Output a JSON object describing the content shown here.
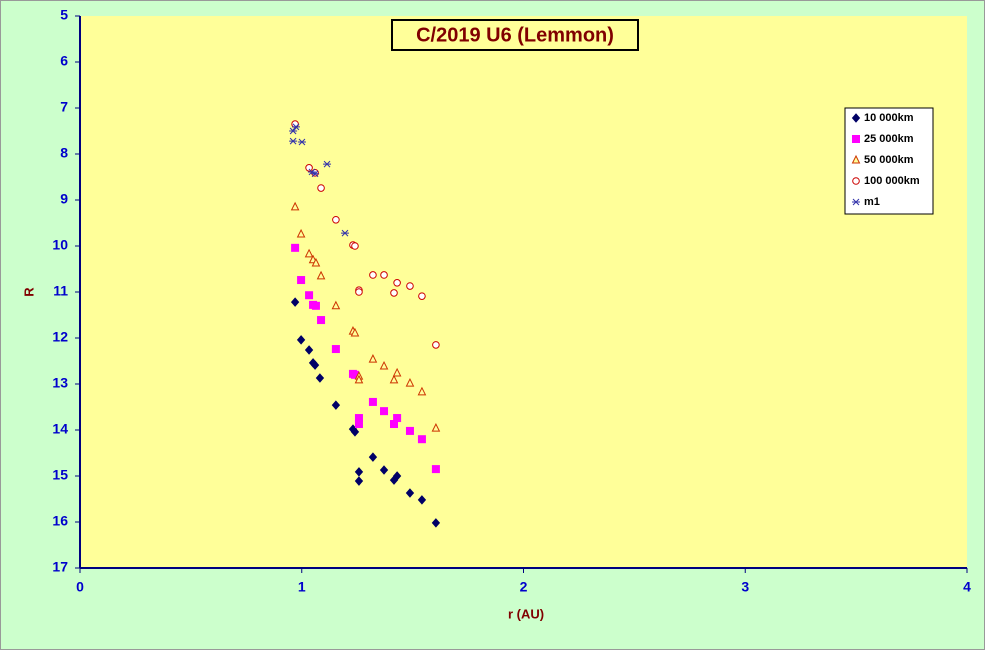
{
  "chart_data": {
    "type": "scatter",
    "title": "C/2019 U6 (Lemmon)",
    "x_label": "r (AU)",
    "y_label": "R",
    "xlim": [
      0,
      4
    ],
    "xticks": [
      0,
      1,
      2,
      3,
      4
    ],
    "ylim": [
      5,
      17
    ],
    "yticks": [
      5,
      6,
      7,
      8,
      9,
      10,
      11,
      12,
      13,
      14,
      15,
      16,
      17
    ],
    "y_reversed": true,
    "legend": "top-right",
    "series": [
      {
        "name": "10 000km",
        "color": "#000066",
        "marker": "diamond",
        "filled": true,
        "x": [
          0.97,
          0.997,
          1.033,
          1.051,
          1.06,
          1.082,
          1.154,
          1.231,
          1.24,
          1.258,
          1.258,
          1.321,
          1.371,
          1.416,
          1.43,
          1.488,
          1.542,
          1.605
        ],
        "values": [
          11.22,
          12.04,
          12.26,
          12.54,
          12.59,
          12.87,
          13.46,
          13.98,
          14.04,
          14.91,
          15.11,
          14.59,
          14.87,
          15.09,
          15.0,
          15.37,
          15.52,
          16.02
        ]
      },
      {
        "name": "25 000km",
        "color": "#ff00ff",
        "marker": "square",
        "filled": true,
        "x": [
          0.97,
          0.997,
          1.033,
          1.051,
          1.064,
          1.087,
          1.154,
          1.231,
          1.24,
          1.258,
          1.258,
          1.321,
          1.371,
          1.416,
          1.43,
          1.488,
          1.542,
          1.605
        ],
        "values": [
          10.04,
          10.74,
          11.07,
          11.28,
          11.3,
          11.61,
          12.24,
          12.78,
          12.8,
          13.74,
          13.87,
          13.39,
          13.59,
          13.87,
          13.74,
          14.02,
          14.2,
          14.85
        ]
      },
      {
        "name": "50 000km",
        "color": "#cc3300",
        "marker": "triangle",
        "filled": false,
        "x": [
          0.97,
          0.997,
          1.033,
          1.051,
          1.064,
          1.087,
          1.154,
          1.231,
          1.24,
          1.258,
          1.258,
          1.321,
          1.371,
          1.416,
          1.43,
          1.488,
          1.542,
          1.605
        ],
        "values": [
          9.15,
          9.74,
          10.17,
          10.3,
          10.37,
          10.65,
          11.3,
          11.85,
          11.89,
          12.83,
          12.91,
          12.46,
          12.61,
          12.91,
          12.76,
          12.98,
          13.17,
          13.96
        ]
      },
      {
        "name": "100 000km",
        "color": "#cc0000",
        "marker": "circle",
        "filled": false,
        "x": [
          0.97,
          1.033,
          1.06,
          1.087,
          1.154,
          1.231,
          1.24,
          1.258,
          1.258,
          1.321,
          1.371,
          1.416,
          1.43,
          1.488,
          1.542,
          1.605
        ],
        "values": [
          7.35,
          8.3,
          8.41,
          8.74,
          9.43,
          9.98,
          10.0,
          10.96,
          11.0,
          10.63,
          10.63,
          11.02,
          10.8,
          10.87,
          11.09,
          12.15
        ]
      },
      {
        "name": "m1",
        "color": "#3333aa",
        "marker": "star",
        "filled": false,
        "x": [
          0.961,
          0.974,
          0.961,
          1.001,
          1.046,
          1.06,
          1.114,
          1.195
        ],
        "values": [
          7.5,
          7.41,
          7.72,
          7.74,
          8.39,
          8.43,
          8.22,
          9.72
        ]
      }
    ]
  }
}
